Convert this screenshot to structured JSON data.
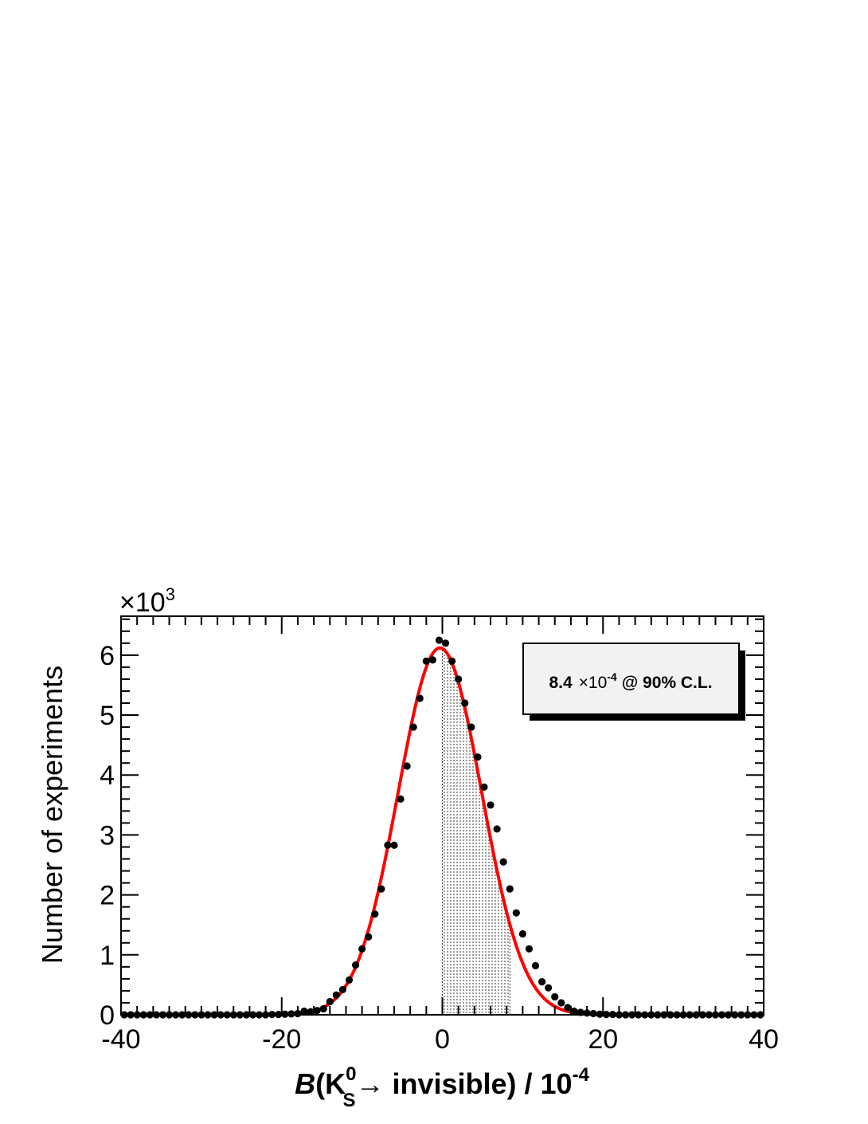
{
  "chart_data": {
    "type": "scatter",
    "xlim": [
      -40,
      40
    ],
    "ylim": [
      0,
      6.65
    ],
    "y_multiplier_label": "×10",
    "y_multiplier_exp": "3",
    "x_ticks": [
      "-40",
      "-20",
      "0",
      "20",
      "40"
    ],
    "y_ticks": [
      "0",
      "1",
      "2",
      "3",
      "4",
      "5",
      "6"
    ],
    "ylabel": "Number of experiments",
    "xlabel": {
      "prefix": "B",
      "open": "(K",
      "sup": "0",
      "sub": "S",
      "rest": "→ invisible) / 10",
      "exp": "-4"
    },
    "annotation": {
      "value": "8.4",
      "times": "×10",
      "exp": "-4",
      "suffix": "@ 90% C.L."
    },
    "fit": {
      "mean": -0.3,
      "sigma": 5.2,
      "amplitude": 6.12,
      "color": "#ff0000"
    },
    "shaded_region": [
      0,
      8.4
    ],
    "points": {
      "x": [
        -39.6,
        -38.8,
        -38.0,
        -37.2,
        -36.4,
        -35.6,
        -34.8,
        -34.0,
        -33.2,
        -32.4,
        -31.6,
        -30.8,
        -30.0,
        -29.2,
        -28.4,
        -27.6,
        -26.8,
        -26.0,
        -25.2,
        -24.4,
        -23.6,
        -22.8,
        -22.0,
        -21.2,
        -20.4,
        -19.6,
        -18.8,
        -18.0,
        -17.2,
        -16.4,
        -15.6,
        -14.8,
        -14.0,
        -13.2,
        -12.4,
        -11.6,
        -10.8,
        -10.0,
        -9.2,
        -8.4,
        -7.6,
        -6.8,
        -6.0,
        -5.2,
        -4.4,
        -3.6,
        -2.8,
        -2.0,
        -1.2,
        -0.4,
        0.4,
        1.2,
        2.0,
        2.8,
        3.6,
        4.4,
        5.2,
        6.0,
        6.8,
        7.6,
        8.4,
        9.2,
        10.0,
        10.8,
        11.6,
        12.4,
        13.2,
        14.0,
        14.8,
        15.6,
        16.4,
        17.2,
        18.0,
        18.8,
        19.6,
        20.4,
        21.2,
        22.0,
        22.8,
        23.6,
        24.4,
        25.2,
        26.0,
        26.8,
        27.6,
        28.4,
        29.2,
        30.0,
        30.8,
        31.6,
        32.4,
        33.2,
        34.0,
        34.8,
        35.6,
        36.4,
        37.2,
        38.0,
        38.8,
        39.6
      ],
      "y": [
        0,
        0,
        0,
        0,
        0,
        0,
        0,
        0,
        0,
        0,
        0,
        0,
        0,
        0,
        0,
        0,
        0,
        0,
        0,
        0,
        0,
        0,
        0,
        0.005,
        0.005,
        0.01,
        0.015,
        0.02,
        0.06,
        0.05,
        0.07,
        0.1,
        0.22,
        0.33,
        0.42,
        0.58,
        0.83,
        1.1,
        1.3,
        1.68,
        2.1,
        2.83,
        2.83,
        3.6,
        4.15,
        4.8,
        5.28,
        5.9,
        5.92,
        6.25,
        6.2,
        5.9,
        5.6,
        5.2,
        4.8,
        4.3,
        3.8,
        3.5,
        3.1,
        2.55,
        2.1,
        1.7,
        1.35,
        1.1,
        0.82,
        0.55,
        0.45,
        0.3,
        0.2,
        0.12,
        0.06,
        0.04,
        0.03,
        0.02,
        0.01,
        0.005,
        0.005,
        0,
        0,
        0,
        0,
        0,
        0,
        0,
        0,
        0,
        0,
        0,
        0,
        0,
        0,
        0,
        0,
        0,
        0,
        0,
        0,
        0,
        0,
        0
      ]
    }
  }
}
